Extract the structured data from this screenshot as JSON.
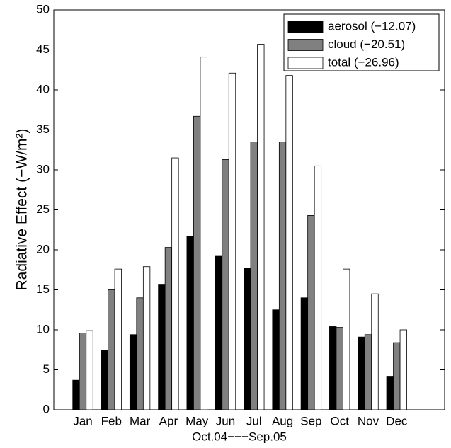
{
  "chart_data": {
    "type": "bar",
    "ylabel": "Radiative Effect (−W/m²)",
    "xlabel": "Oct.04−−−Sep.05",
    "categories": [
      "Jan",
      "Feb",
      "Mar",
      "Apr",
      "May",
      "Jun",
      "Jul",
      "Aug",
      "Sep",
      "Oct",
      "Nov",
      "Dec"
    ],
    "series": [
      {
        "name": "aerosol (−12.07)",
        "color": "#000000",
        "values": [
          3.7,
          7.4,
          9.4,
          15.7,
          21.7,
          19.2,
          17.7,
          12.5,
          14.0,
          10.4,
          9.1,
          4.2
        ]
      },
      {
        "name": "cloud (−20.51)",
        "color": "#808080",
        "values": [
          9.6,
          15.0,
          14.0,
          20.3,
          36.7,
          31.3,
          33.5,
          33.5,
          24.3,
          10.3,
          9.4,
          8.4
        ]
      },
      {
        "name": "total (−26.96)",
        "color": "#ffffff",
        "values": [
          9.9,
          17.6,
          17.9,
          31.5,
          44.1,
          42.1,
          45.7,
          41.8,
          30.5,
          17.6,
          14.5,
          10.0
        ]
      }
    ],
    "ylim": [
      0,
      50
    ],
    "yticks": [
      0,
      5,
      10,
      15,
      20,
      25,
      30,
      35,
      40,
      45,
      50
    ],
    "grid": false,
    "legend": "upper right"
  }
}
